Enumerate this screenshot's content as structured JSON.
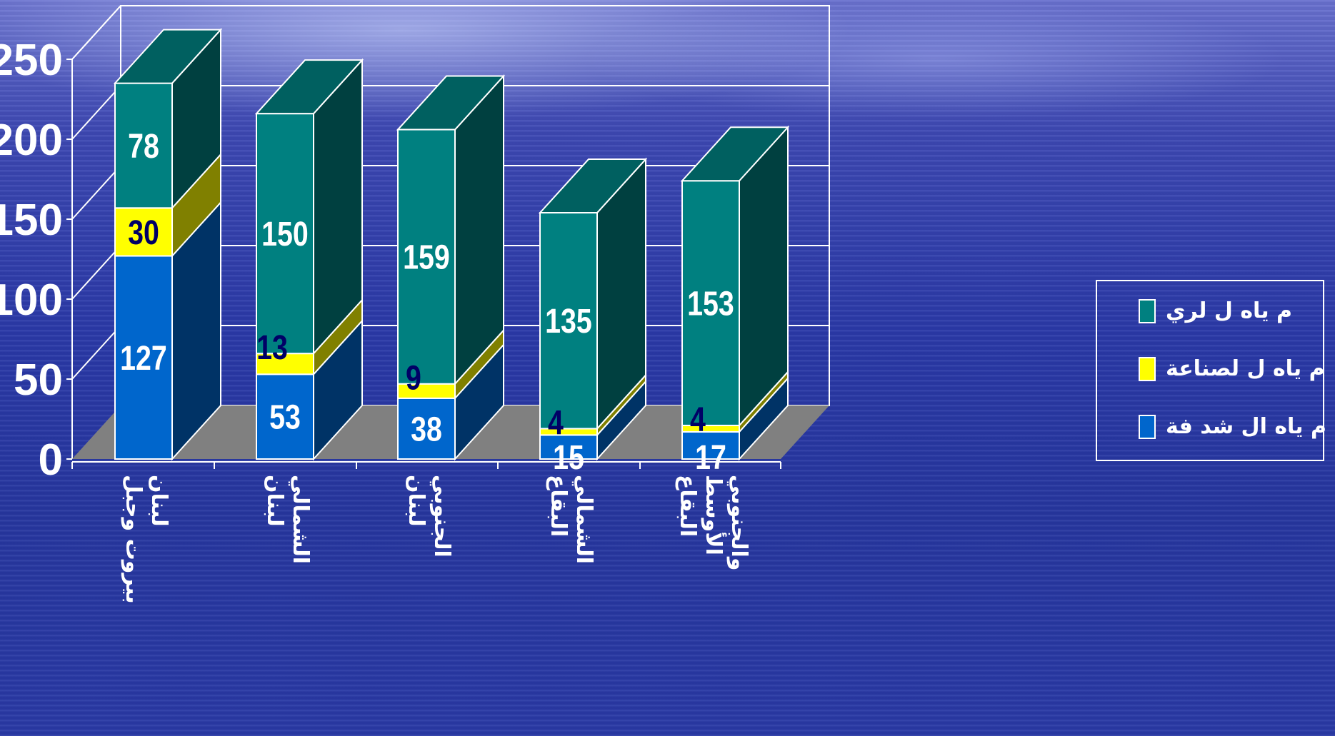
{
  "chart_data": {
    "type": "bar",
    "stacked": true,
    "three_d": true,
    "categories": [
      "بيروت وجبل لبنان",
      "لبنان الشمالي",
      "لبنان الجنوبي",
      "البقاع الشمالي",
      "البقاع الأوسط والجنوبي"
    ],
    "category_lines": [
      [
        "بيروت وجبل",
        "لبنان"
      ],
      [
        "لبنان",
        "الشمالي"
      ],
      [
        "لبنان",
        "الجنوبي"
      ],
      [
        "البقاع",
        "الشمالي"
      ],
      [
        "البقاع",
        "الأوسط",
        "والجنوبي"
      ]
    ],
    "series": [
      {
        "name": "م ياه ال شد فة",
        "values": [
          127,
          53,
          38,
          15,
          17
        ],
        "color": "#0066cc",
        "side_color": "#003366",
        "label_color": "#ffffff"
      },
      {
        "name": "م ياه ل لصناعة",
        "values": [
          30,
          13,
          9,
          4,
          4
        ],
        "color": "#ffff00",
        "side_color": "#808000",
        "label_color": "#000066"
      },
      {
        "name": "م ياه ل لري",
        "values": [
          78,
          150,
          159,
          135,
          153
        ],
        "color": "#008080",
        "side_color": "#004040",
        "top_color": "#006060",
        "label_color": "#ffffff"
      }
    ],
    "ylim": [
      0,
      250
    ],
    "yticks": [
      0,
      50,
      100,
      150,
      200,
      250
    ],
    "ytick_labels": [
      "0",
      "50",
      "100",
      "150",
      "200",
      "250"
    ],
    "grid": true,
    "legend_position": "right",
    "title": "",
    "xlabel": "",
    "ylabel": "",
    "colors": {
      "floor": "#808080",
      "grid": "#ffffff",
      "text": "#ffffff"
    }
  }
}
